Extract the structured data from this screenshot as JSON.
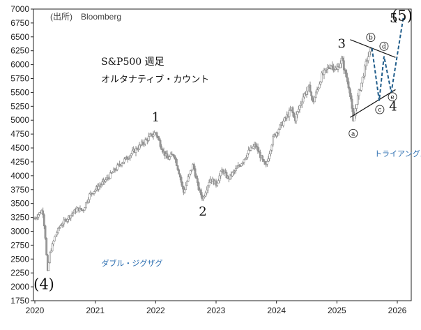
{
  "source": "(出所)　Bloomberg",
  "title": "S&P500 週足",
  "subtitle": "オルタナティブ・カウント",
  "colors": {
    "price": "#8a8a8a",
    "wave_projection": "#1f5c8a",
    "trendline": "#111111",
    "annotation": "#2a6db0"
  },
  "chart_data": {
    "type": "candlestick",
    "frequency": "weekly",
    "xlim": [
      2020.0,
      2026.2
    ],
    "ylim": [
      1750,
      7000
    ],
    "x_ticks": [
      "2020",
      "2021",
      "2022",
      "2023",
      "2024",
      "2025",
      "2026"
    ],
    "y_ticks": [
      "1750",
      "2000",
      "2250",
      "2500",
      "2750",
      "3000",
      "3250",
      "3500",
      "3750",
      "4000",
      "4250",
      "4500",
      "4750",
      "5000",
      "5250",
      "5500",
      "5750",
      "6000",
      "6250",
      "6500",
      "6750",
      "7000"
    ],
    "price_path": [
      [
        2020.0,
        3230
      ],
      [
        2020.05,
        3300
      ],
      [
        2020.13,
        3380
      ],
      [
        2020.17,
        2950
      ],
      [
        2020.21,
        2250
      ],
      [
        2020.25,
        2600
      ],
      [
        2020.33,
        2900
      ],
      [
        2020.42,
        3100
      ],
      [
        2020.55,
        3250
      ],
      [
        2020.7,
        3400
      ],
      [
        2020.8,
        3380
      ],
      [
        2020.9,
        3650
      ],
      [
        2021.0,
        3750
      ],
      [
        2021.2,
        3950
      ],
      [
        2021.4,
        4200
      ],
      [
        2021.6,
        4400
      ],
      [
        2021.75,
        4550
      ],
      [
        2021.9,
        4700
      ],
      [
        2022.0,
        4780
      ],
      [
        2022.12,
        4450
      ],
      [
        2022.2,
        4300
      ],
      [
        2022.3,
        4400
      ],
      [
        2022.4,
        4000
      ],
      [
        2022.46,
        3700
      ],
      [
        2022.52,
        3900
      ],
      [
        2022.62,
        4200
      ],
      [
        2022.7,
        3800
      ],
      [
        2022.78,
        3580
      ],
      [
        2022.9,
        3950
      ],
      [
        2023.0,
        3850
      ],
      [
        2023.1,
        4100
      ],
      [
        2023.2,
        3950
      ],
      [
        2023.4,
        4200
      ],
      [
        2023.55,
        4450
      ],
      [
        2023.65,
        4550
      ],
      [
        2023.82,
        4150
      ],
      [
        2023.95,
        4700
      ],
      [
        2024.1,
        4950
      ],
      [
        2024.25,
        5200
      ],
      [
        2024.3,
        5000
      ],
      [
        2024.45,
        5450
      ],
      [
        2024.55,
        5600
      ],
      [
        2024.6,
        5300
      ],
      [
        2024.75,
        5800
      ],
      [
        2024.9,
        6000
      ],
      [
        2025.0,
        5900
      ],
      [
        2025.08,
        6100
      ],
      [
        2025.15,
        5800
      ],
      [
        2025.22,
        5500
      ],
      [
        2025.27,
        4950
      ],
      [
        2025.32,
        5300
      ],
      [
        2025.4,
        5650
      ],
      [
        2025.5,
        6100
      ],
      [
        2025.58,
        6300
      ]
    ],
    "projection_path": [
      [
        2025.58,
        6300
      ],
      [
        2025.7,
        5350
      ],
      [
        2025.78,
        6150
      ],
      [
        2025.9,
        5500
      ],
      [
        2026.1,
        6850
      ]
    ],
    "trendlines": [
      {
        "from": [
          2025.22,
          6450
        ],
        "to": [
          2025.97,
          6130
        ]
      },
      {
        "from": [
          2025.22,
          5050
        ],
        "to": [
          2025.97,
          5550
        ]
      }
    ],
    "wave_labels": [
      {
        "text": "1",
        "x": 2022.0,
        "y": 4980
      },
      {
        "text": "2",
        "x": 2022.78,
        "y": 3280
      },
      {
        "text": "3",
        "x": 2025.08,
        "y": 6300
      },
      {
        "text": "4",
        "x": 2025.93,
        "y": 5170
      },
      {
        "text": "(4)",
        "x": 2020.15,
        "y": 1960
      },
      {
        "text": "5",
        "x": 2025.94,
        "y": 6760
      },
      {
        "text": "(5)",
        "x": 2026.08,
        "y": 6790
      }
    ],
    "subwave_labels": [
      {
        "text": "a",
        "x": 2025.27,
        "y": 4760
      },
      {
        "text": "b",
        "x": 2025.56,
        "y": 6490
      },
      {
        "text": "c",
        "x": 2025.71,
        "y": 5190
      },
      {
        "text": "d",
        "x": 2025.78,
        "y": 6330
      },
      {
        "text": "e",
        "x": 2025.92,
        "y": 5420
      }
    ],
    "annotations": [
      {
        "text": "トライアングル",
        "x": 2025.62,
        "y": 4350
      },
      {
        "text": "ダブル・ジグザグ",
        "x": 2021.1,
        "y": 2380
      }
    ]
  }
}
